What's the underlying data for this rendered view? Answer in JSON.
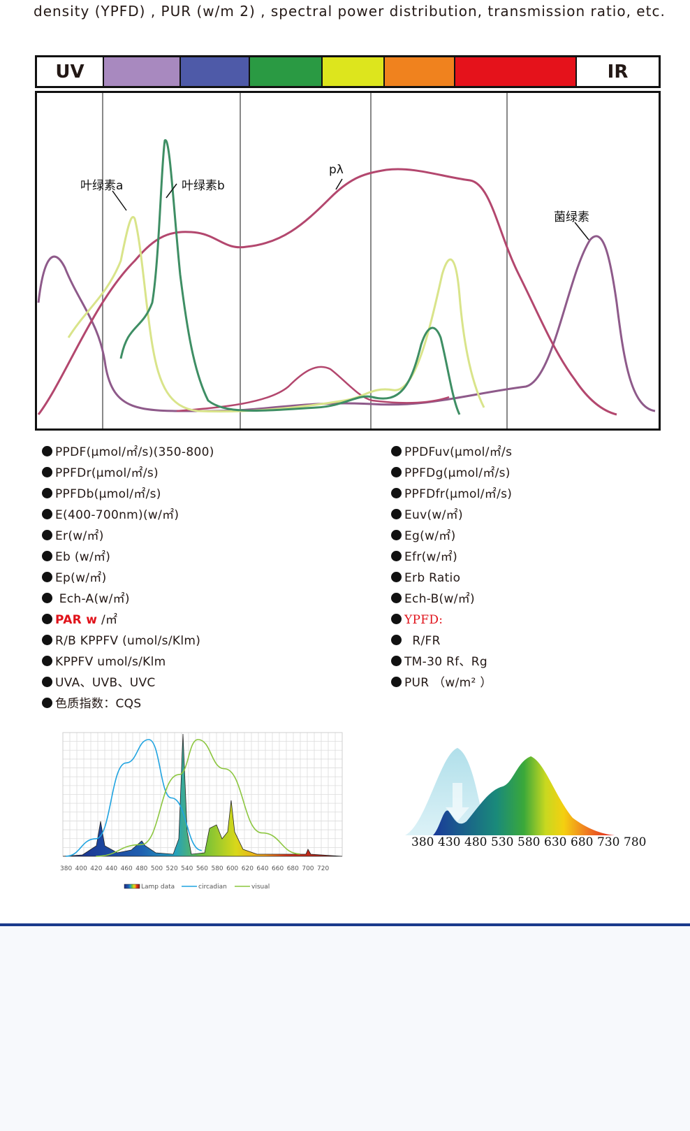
{
  "intro_line": "density (YPFD) , PUR (w/m 2) , spectral power distribution, transmission ratio, etc.",
  "band": {
    "uv": "UV",
    "ir": "IR",
    "colors": [
      "#ffffff",
      "#a889bf",
      "#4e5aa8",
      "#2a9a43",
      "#dde51d",
      "#f0821e",
      "#e5121b",
      "#ffffff"
    ]
  },
  "main_chart": {
    "labels": {
      "chl_a": "叶绿素a",
      "chl_b": "叶绿素b",
      "p_lambda": "pλ",
      "bacteriochl": "菌绿素"
    },
    "colors": {
      "chl_a": "#d9e48a",
      "chl_b": "#3e8e64",
      "p_lambda": "#b3476e",
      "bacteriochl": "#8e5a8a"
    }
  },
  "params_left": [
    "PPDF(μmol/㎡/s)(350-800)",
    "PPFDr(μmol/㎡/s)",
    "PPFDb(μmol/㎡/s)",
    "E(400-700nm)(w/㎡)",
    "Er(w/㎡)",
    "Eb (w/㎡)",
    "Ep(w/㎡)",
    " Ech-A(w/㎡)",
    "PAR  w",
    "R/B  KPPFV (umol/s/Klm)",
    "KPPFV   umol/s/Klm",
    "UVA、UVB、UVC",
    "色质指数：CQS"
  ],
  "par_unit": " /㎡",
  "params_right": [
    "PPDFuv(μmol/㎡/s",
    "PPFDg(μmol/㎡/s)",
    "PPFDfr(μmol/㎡/s)",
    "Euv(w/㎡)",
    "Eg(w/㎡)",
    "Efr(w/㎡)",
    "Erb Ratio",
    "Ech-B(w/㎡)",
    "YPFD:",
    "  R/FR",
    "TM-30 Rf、Rg",
    "PUR （w/m² ）"
  ],
  "chart_data": [
    {
      "type": "line",
      "title": "",
      "x_ticks": [
        "380",
        "400",
        "420",
        "440",
        "460",
        "480",
        "500",
        "520",
        "540",
        "560",
        "580",
        "600",
        "620",
        "640",
        "660",
        "680",
        "700",
        "720"
      ],
      "legend": [
        "Lamp data",
        "circadian",
        "visual"
      ],
      "series": [
        {
          "name": "circadian",
          "x": [
            380,
            420,
            460,
            490,
            520,
            560
          ],
          "values": [
            0,
            0.15,
            0.8,
            1.0,
            0.5,
            0.05
          ]
        },
        {
          "name": "visual",
          "x": [
            420,
            480,
            530,
            555,
            590,
            640,
            690
          ],
          "values": [
            0,
            0.1,
            0.7,
            1.0,
            0.75,
            0.2,
            0.02
          ]
        }
      ],
      "colors": {
        "circadian": "#1fa3e0",
        "visual": "#8cc63f"
      }
    },
    {
      "type": "area",
      "title": "",
      "x_ticks": [
        "380",
        "430",
        "480",
        "530",
        "580",
        "630",
        "680",
        "730",
        "780"
      ]
    }
  ]
}
